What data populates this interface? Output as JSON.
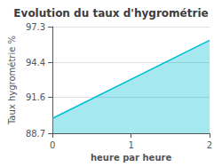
{
  "chart_data": {
    "type": "area",
    "title": "Evolution du taux d'hygrométrie",
    "xlabel": "heure par heure",
    "ylabel": "Taux hygrométrie %",
    "x": [
      0,
      2
    ],
    "values": [
      89.9,
      96.2
    ],
    "color": "#00bcd4",
    "xlim": [
      0,
      2
    ],
    "xticks": [
      0,
      1,
      2
    ],
    "ylim": [
      88.7,
      97.3
    ],
    "yticks": [
      88.7,
      91.6,
      94.4,
      97.3
    ],
    "grid": true
  }
}
